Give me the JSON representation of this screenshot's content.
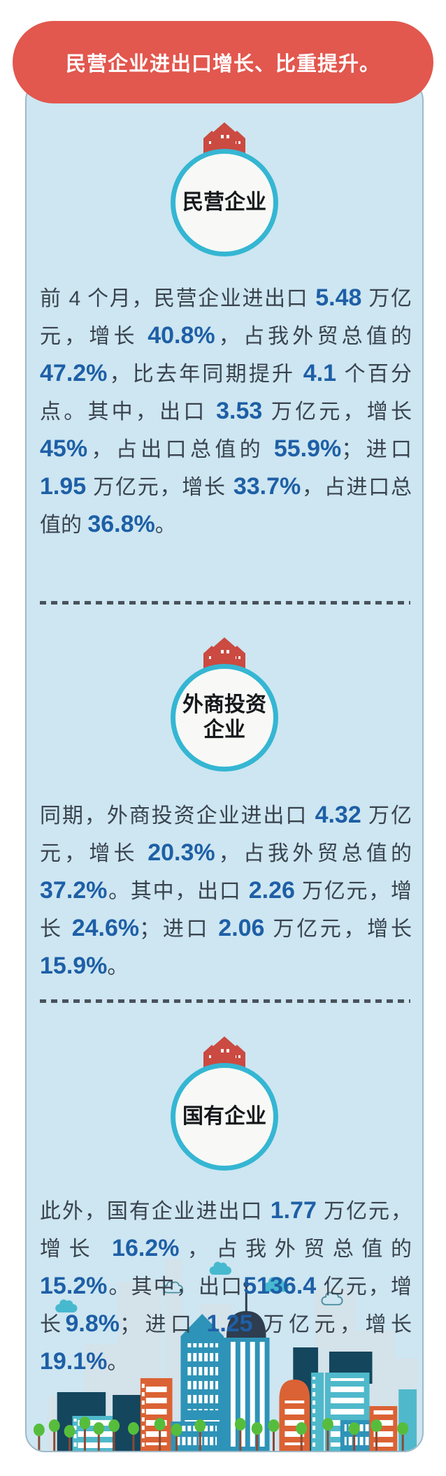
{
  "banner": {
    "title": "民营企业进出口增长、比重提升。"
  },
  "theme": {
    "banner_red": "#E2574E",
    "panel_blue": "#CDE6F1",
    "highlight_blue": "#1E5FA6",
    "body_text": "#39434E",
    "circle_ring_teal": "#35B6D3",
    "house_red": "#CB4A41",
    "building_teal": "#2E93B8",
    "building_cyan": "#4FB9CB",
    "building_navy": "#14465E",
    "building_orange": "#DB6234",
    "tree_green": "#56BD3C"
  },
  "icons": {
    "badge_icon": "red-houses-icon",
    "footer_illustration": "city-skyline-illustration"
  },
  "sections": [
    {
      "badge": "民营企业",
      "paragraph": [
        {
          "t": "前 4 个月，民营企业进出口 "
        },
        {
          "t": "5.48",
          "h": true
        },
        {
          "t": " 万亿元，增长 "
        },
        {
          "t": "40.8%",
          "h": true
        },
        {
          "t": "，占我外贸总值的 "
        },
        {
          "t": "47.2%",
          "h": true
        },
        {
          "t": "，比去年同期提升 "
        },
        {
          "t": "4.1",
          "h": true
        },
        {
          "t": " 个百分点。其中，出口 "
        },
        {
          "t": "3.53",
          "h": true
        },
        {
          "t": " 万亿元，增长 "
        },
        {
          "t": "45%",
          "h": true
        },
        {
          "t": "，占出口总值的 "
        },
        {
          "t": "55.9%",
          "h": true
        },
        {
          "t": "；进口 "
        },
        {
          "t": "1.95",
          "h": true
        },
        {
          "t": " 万亿元，增长 "
        },
        {
          "t": "33.7%",
          "h": true
        },
        {
          "t": "，占进口总值的 "
        },
        {
          "t": "36.8%",
          "h": true
        },
        {
          "t": "。"
        }
      ]
    },
    {
      "badge": "外商投资\n企业",
      "paragraph": [
        {
          "t": "同期，外商投资企业进出口 "
        },
        {
          "t": "4.32",
          "h": true
        },
        {
          "t": " 万亿元，增长 "
        },
        {
          "t": "20.3%",
          "h": true
        },
        {
          "t": "，占我外贸总值的 "
        },
        {
          "t": "37.2%",
          "h": true
        },
        {
          "t": "。其中，出口 "
        },
        {
          "t": "2.26",
          "h": true
        },
        {
          "t": " 万亿元，增长 "
        },
        {
          "t": "24.6%",
          "h": true
        },
        {
          "t": "；进口 "
        },
        {
          "t": "2.06",
          "h": true
        },
        {
          "t": " 万亿元，增长 "
        },
        {
          "t": "15.9%",
          "h": true
        },
        {
          "t": "。"
        }
      ]
    },
    {
      "badge": "国有企业",
      "paragraph": [
        {
          "t": "此外，国有企业进出口 "
        },
        {
          "t": "1.77",
          "h": true
        },
        {
          "t": " 万亿元，增长 "
        },
        {
          "t": "16.2%",
          "h": true
        },
        {
          "t": "，占我外贸总值的 "
        },
        {
          "t": "15.2%",
          "h": true
        },
        {
          "t": "。其中，出口"
        },
        {
          "t": "5136.4",
          "h": true
        },
        {
          "t": " 亿元，增长"
        },
        {
          "t": "9.8%",
          "h": true
        },
        {
          "t": "；进口 "
        },
        {
          "t": "1.25",
          "h": true
        },
        {
          "t": " 万亿元，增长 "
        },
        {
          "t": "19.1%",
          "h": true
        },
        {
          "t": "。"
        }
      ]
    }
  ]
}
